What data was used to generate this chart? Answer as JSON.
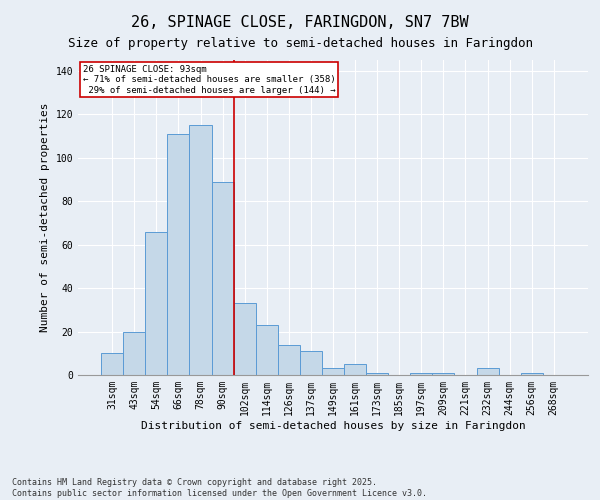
{
  "title": "26, SPINAGE CLOSE, FARINGDON, SN7 7BW",
  "subtitle": "Size of property relative to semi-detached houses in Faringdon",
  "xlabel": "Distribution of semi-detached houses by size in Faringdon",
  "ylabel": "Number of semi-detached properties",
  "categories": [
    "31sqm",
    "43sqm",
    "54sqm",
    "66sqm",
    "78sqm",
    "90sqm",
    "102sqm",
    "114sqm",
    "126sqm",
    "137sqm",
    "149sqm",
    "161sqm",
    "173sqm",
    "185sqm",
    "197sqm",
    "209sqm",
    "221sqm",
    "232sqm",
    "244sqm",
    "256sqm",
    "268sqm"
  ],
  "values": [
    10,
    20,
    66,
    111,
    115,
    89,
    33,
    23,
    14,
    11,
    3,
    5,
    1,
    0,
    1,
    1,
    0,
    3,
    0,
    1,
    0
  ],
  "bar_color": "#c5d8e8",
  "bar_edge_color": "#5b9bd5",
  "reference_line_idx": 5,
  "smaller_pct": "71%",
  "smaller_count": 358,
  "larger_pct": "29%",
  "larger_count": 144,
  "ylim": [
    0,
    145
  ],
  "yticks": [
    0,
    20,
    40,
    60,
    80,
    100,
    120,
    140
  ],
  "annotation_box_color": "#ffffff",
  "annotation_box_edge": "#cc0000",
  "footer": "Contains HM Land Registry data © Crown copyright and database right 2025.\nContains public sector information licensed under the Open Government Licence v3.0.",
  "bg_color": "#e8eef5",
  "plot_bg_color": "#e8eef5",
  "grid_color": "#ffffff",
  "title_fontsize": 11,
  "subtitle_fontsize": 9,
  "tick_fontsize": 7,
  "label_fontsize": 8,
  "footer_fontsize": 6
}
